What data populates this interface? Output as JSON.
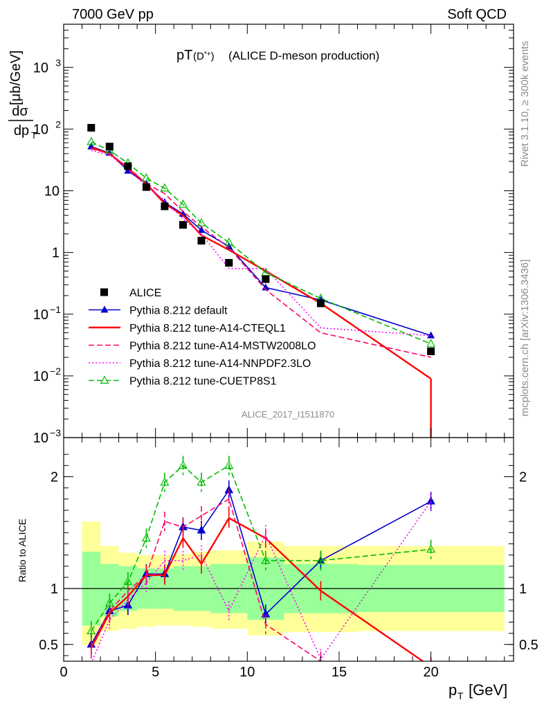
{
  "header": {
    "energy": "7000 GeV pp",
    "process": "Soft QCD",
    "title": "pT(D*+) (ALICE D-meson production)",
    "analysis_id": "ALICE_2017_I1511870",
    "rivet": "Rivet 3.1.10, ≥ 300k events",
    "site": "mcplots.cern.ch [arXiv:1306.3436]"
  },
  "chart_data": [
    {
      "type": "line",
      "panel": "main",
      "title": "pT(D*+) (ALICE D-meson production)",
      "ylabel": "dσ/dp_T [μb/GeV]",
      "yscale": "log",
      "ylim": [
        0.001,
        5000
      ],
      "xlim": [
        0,
        24.5
      ],
      "yticks": [
        "10^-3",
        "10^-2",
        "10^-1",
        "1",
        "10",
        "10^2",
        "10^3"
      ],
      "data_points": {
        "name": "ALICE",
        "x": [
          1.5,
          2.5,
          3.5,
          4.5,
          5.5,
          6.5,
          7.5,
          9,
          11,
          14,
          20
        ],
        "y": [
          105,
          52,
          25,
          11.5,
          5.6,
          2.8,
          1.55,
          0.68,
          0.37,
          0.15,
          0.025
        ]
      },
      "series": [
        {
          "name": "Pythia 8.212 default",
          "color": "#0000cc",
          "dash": "solid",
          "marker": "triangle-filled",
          "x": [
            1.5,
            2.5,
            3.5,
            4.5,
            5.5,
            6.5,
            7.5,
            9,
            11,
            14,
            20
          ],
          "y": [
            52,
            41,
            21,
            13,
            6.5,
            4.2,
            2.3,
            1.25,
            0.27,
            0.17,
            0.045
          ]
        },
        {
          "name": "Pythia 8.212 tune-A14-CTEQL1",
          "color": "#ff0000",
          "dash": "solid",
          "marker": "none",
          "x": [
            1.5,
            2.5,
            3.5,
            4.5,
            5.5,
            6.5,
            7.5,
            9,
            11,
            14,
            20
          ],
          "y": [
            50,
            40,
            23,
            13,
            6.2,
            4.0,
            1.9,
            1.1,
            0.5,
            0.15,
            0.009
          ]
        },
        {
          "name": "Pythia 8.212 tune-A14-MSTW2008LO",
          "color": "#ff0066",
          "dash": "dashed",
          "marker": "none",
          "x": [
            1.5,
            2.5,
            3.5,
            4.5,
            5.5,
            6.5,
            7.5,
            9,
            11,
            14,
            20
          ],
          "y": [
            48,
            40,
            24,
            13,
            9.0,
            4.6,
            2.6,
            1.2,
            0.25,
            0.05,
            0.02
          ]
        },
        {
          "name": "Pythia 8.212 tune-A14-NNPDF2.3LO",
          "color": "#ff00ff",
          "dash": "dotted",
          "marker": "none",
          "x": [
            1.5,
            2.5,
            3.5,
            4.5,
            5.5,
            6.5,
            7.5,
            9,
            11,
            14,
            20
          ],
          "y": [
            45,
            38,
            22,
            12,
            7.0,
            3.5,
            2.0,
            0.55,
            0.55,
            0.06,
            0.045
          ]
        },
        {
          "name": "Pythia 8.212 tune-CUETP8S1",
          "color": "#00bb00",
          "dash": "dashed",
          "marker": "triangle-open",
          "x": [
            1.5,
            2.5,
            3.5,
            4.5,
            5.5,
            6.5,
            7.5,
            9,
            11,
            14,
            20
          ],
          "y": [
            62,
            45,
            28,
            16,
            11,
            6.0,
            3.0,
            1.45,
            0.47,
            0.18,
            0.033
          ]
        }
      ]
    },
    {
      "type": "line",
      "panel": "ratio",
      "ylabel": "Ratio to ALICE",
      "xlabel": "p_T [GeV]",
      "ylim": [
        0.35,
        2.35
      ],
      "xlim": [
        0,
        24.5
      ],
      "xticks": [
        0,
        5,
        10,
        15,
        20
      ],
      "yticks": [
        0.5,
        1,
        2
      ],
      "bands": {
        "edges": [
          1,
          2,
          3,
          4,
          5,
          6,
          7,
          8,
          10,
          12,
          16,
          24
        ],
        "inner": [
          [
            0.67,
            1.33
          ],
          [
            0.75,
            1.22
          ],
          [
            0.8,
            1.2
          ],
          [
            0.82,
            1.18
          ],
          [
            0.82,
            1.18
          ],
          [
            0.8,
            1.2
          ],
          [
            0.8,
            1.2
          ],
          [
            0.78,
            1.22
          ],
          [
            0.72,
            1.28
          ],
          [
            0.78,
            1.22
          ],
          [
            0.79,
            1.21
          ]
        ],
        "outer": [
          [
            0.5,
            1.6
          ],
          [
            0.62,
            1.38
          ],
          [
            0.64,
            1.32
          ],
          [
            0.66,
            1.3
          ],
          [
            0.67,
            1.3
          ],
          [
            0.67,
            1.31
          ],
          [
            0.66,
            1.33
          ],
          [
            0.64,
            1.34
          ],
          [
            0.58,
            1.42
          ],
          [
            0.61,
            1.38
          ],
          [
            0.62,
            1.38
          ]
        ]
      },
      "series": [
        {
          "name": "Pythia 8.212 default",
          "color": "#0000cc",
          "y": [
            0.5,
            0.8,
            0.85,
            1.13,
            1.13,
            1.55,
            1.52,
            1.88,
            0.77,
            1.25,
            1.78
          ]
        },
        {
          "name": "Pythia 8.212 tune-A14-CTEQL1",
          "color": "#ff0000",
          "y": [
            0.47,
            0.78,
            0.93,
            1.12,
            1.12,
            1.45,
            1.22,
            1.63,
            1.45,
            0.98,
            0.3
          ]
        },
        {
          "name": "Pythia 8.212 tune-A14-MSTW2008LO",
          "color": "#ff0066",
          "y": [
            0.48,
            0.8,
            0.98,
            1.12,
            1.6,
            1.55,
            1.65,
            1.8,
            0.68,
            0.35,
            0.3
          ]
        },
        {
          "name": "Pythia 8.212 tune-A14-NNPDF2.3LO",
          "color": "#ff00ff",
          "y": [
            0.33,
            0.72,
            0.9,
            1.05,
            1.25,
            1.25,
            1.3,
            0.8,
            1.48,
            0.37,
            1.78
          ]
        },
        {
          "name": "Pythia 8.212 tune-CUETP8S1",
          "color": "#00bb00",
          "y": [
            0.62,
            0.87,
            1.06,
            1.45,
            1.95,
            2.1,
            1.95,
            2.1,
            1.25,
            1.25,
            1.35
          ]
        }
      ]
    }
  ]
}
